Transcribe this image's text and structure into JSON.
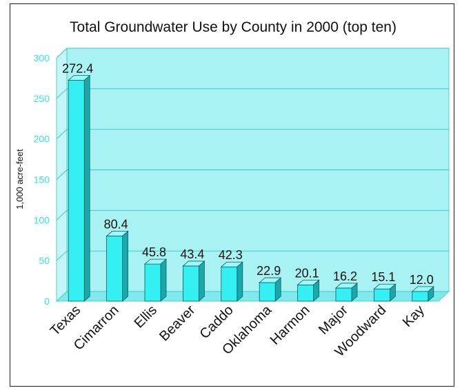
{
  "colors": {
    "background": "#ffffff",
    "plot_fill": "#a9f2f3",
    "bar_front": "#35f0f2",
    "bar_top": "#9df8fa",
    "bar_side": "#19a9ab",
    "tick_label": "#2ee8ee",
    "gridline": "#33c4c8",
    "frame": "#1a1a1a"
  },
  "chart_data": {
    "type": "bar",
    "title": "Total Groundwater Use by County in 2000 (top ten)",
    "xlabel": "",
    "ylabel": "1,000 acre-feet",
    "categories": [
      "Texas",
      "Cimarron",
      "Ellis",
      "Beaver",
      "Caddo",
      "Oklahoma",
      "Harmon",
      "Major",
      "Woodward",
      "Kay"
    ],
    "values": [
      272.4,
      80.4,
      45.8,
      43.4,
      42.3,
      22.9,
      20.1,
      16.2,
      15.1,
      12.0
    ],
    "data_labels": [
      "272.4",
      "80.4",
      "45.8",
      "43.4",
      "42.3",
      "22.9",
      "20.1",
      "16.2",
      "15.1",
      "12.0"
    ],
    "ylim": [
      0,
      300
    ],
    "yticks": [
      0,
      50,
      100,
      150,
      200,
      250,
      300
    ],
    "ytick_labels": [
      "0",
      "50",
      "100",
      "150",
      "200",
      "250",
      "300"
    ],
    "grid": true,
    "legend": "none",
    "style": "3d"
  }
}
